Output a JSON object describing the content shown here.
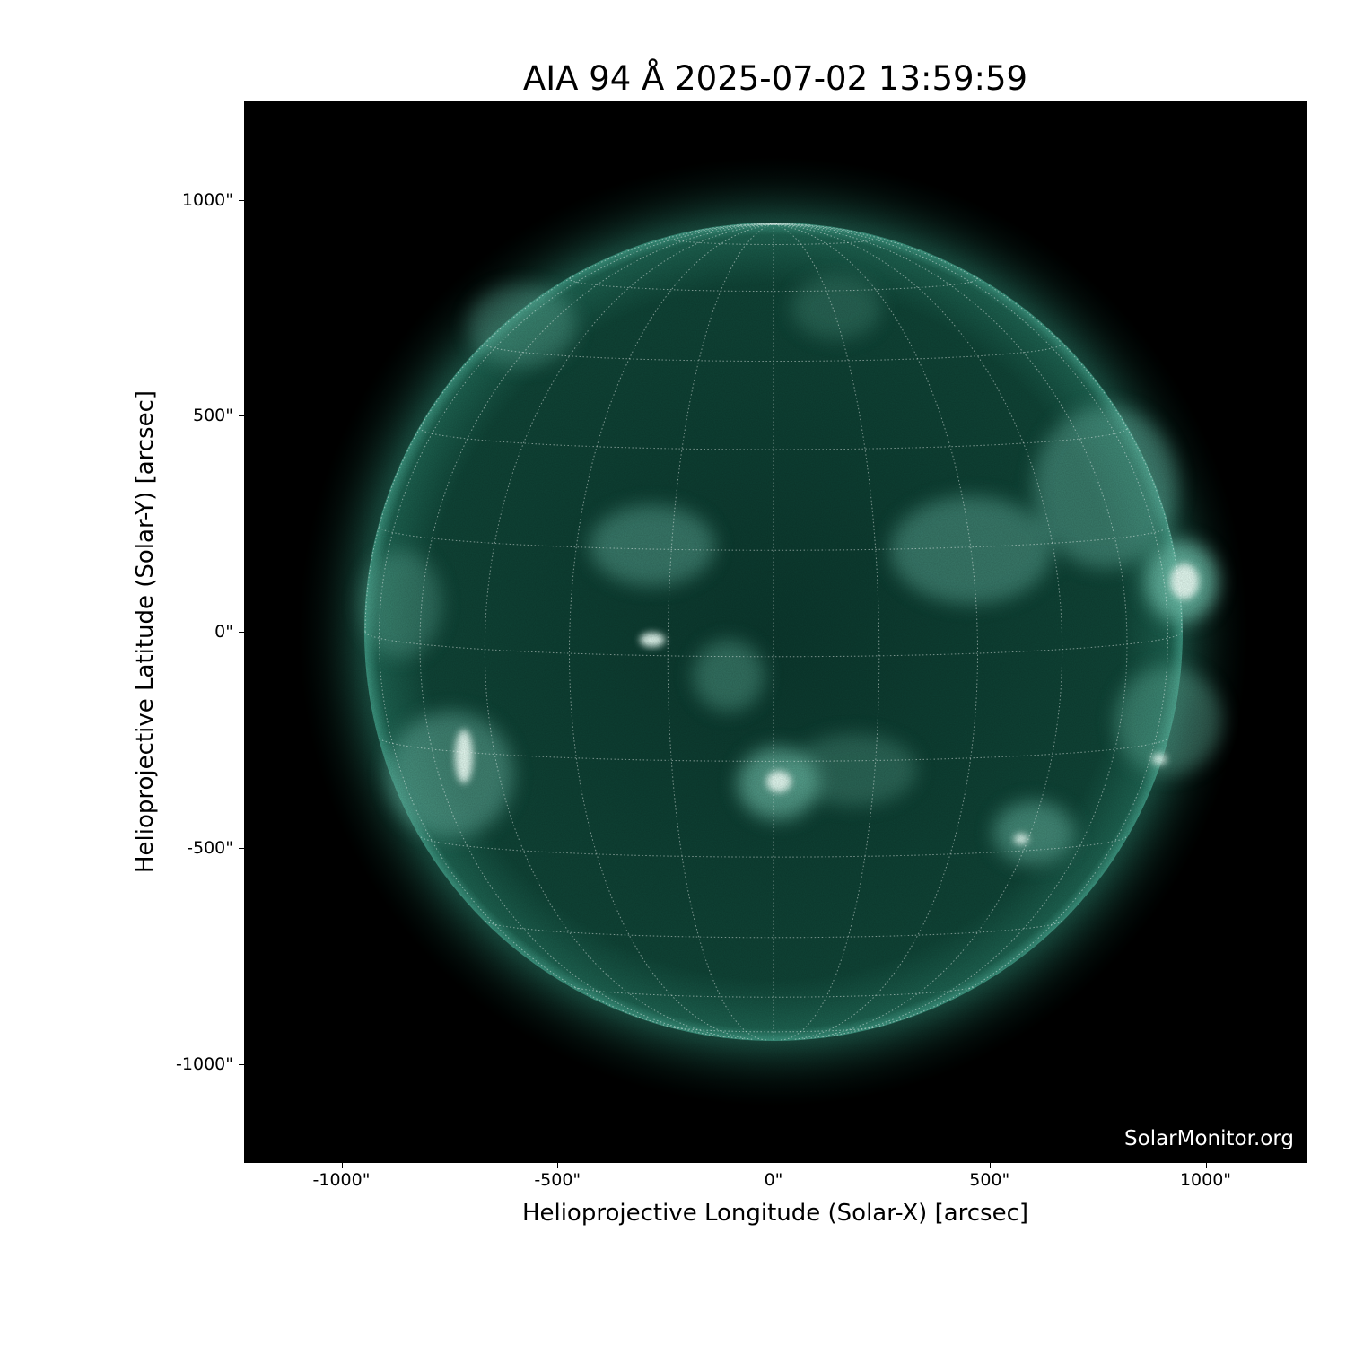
{
  "title": "AIA 94 Å 2025-07-02 13:59:59",
  "xlabel": "Helioprojective Longitude (Solar-X) [arcsec]",
  "ylabel": "Helioprojective Latitude (Solar-Y) [arcsec]",
  "xticks": [
    "-1000\"",
    "-500\"",
    "0\"",
    "500\"",
    "1000\""
  ],
  "yticks": [
    "1000\"",
    "500\"",
    "0\"",
    "-500\"",
    "-1000\""
  ],
  "tick_values": [
    -1000,
    -500,
    0,
    500,
    1000
  ],
  "watermark": "SolarMonitor.org",
  "colors": {
    "disk": "#0f4a3c",
    "bright": "#e8fff6",
    "background": "#000000"
  },
  "grid_spacing_deg": 15
}
